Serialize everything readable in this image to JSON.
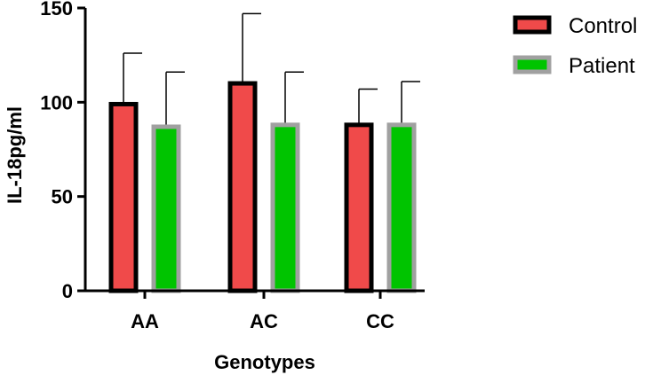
{
  "chart_data": {
    "type": "bar",
    "title": "",
    "xlabel": "Genotypes",
    "ylabel": "IL-18pg/ml",
    "categories": [
      "AA",
      "AC",
      "CC"
    ],
    "ylim": [
      0,
      150
    ],
    "yticks": [
      "0",
      "50",
      "100",
      "150"
    ],
    "legend_position": "top-right",
    "series": [
      {
        "name": "Control",
        "fill": "#f04a4a",
        "stroke": "#000000",
        "values": [
          99,
          110,
          88
        ],
        "error_upper": [
          126,
          147,
          107
        ]
      },
      {
        "name": "Patient",
        "fill": "#00c400",
        "stroke": "#a0a0a0",
        "values": [
          87,
          88,
          88
        ],
        "error_upper": [
          116,
          116,
          111
        ]
      }
    ]
  }
}
